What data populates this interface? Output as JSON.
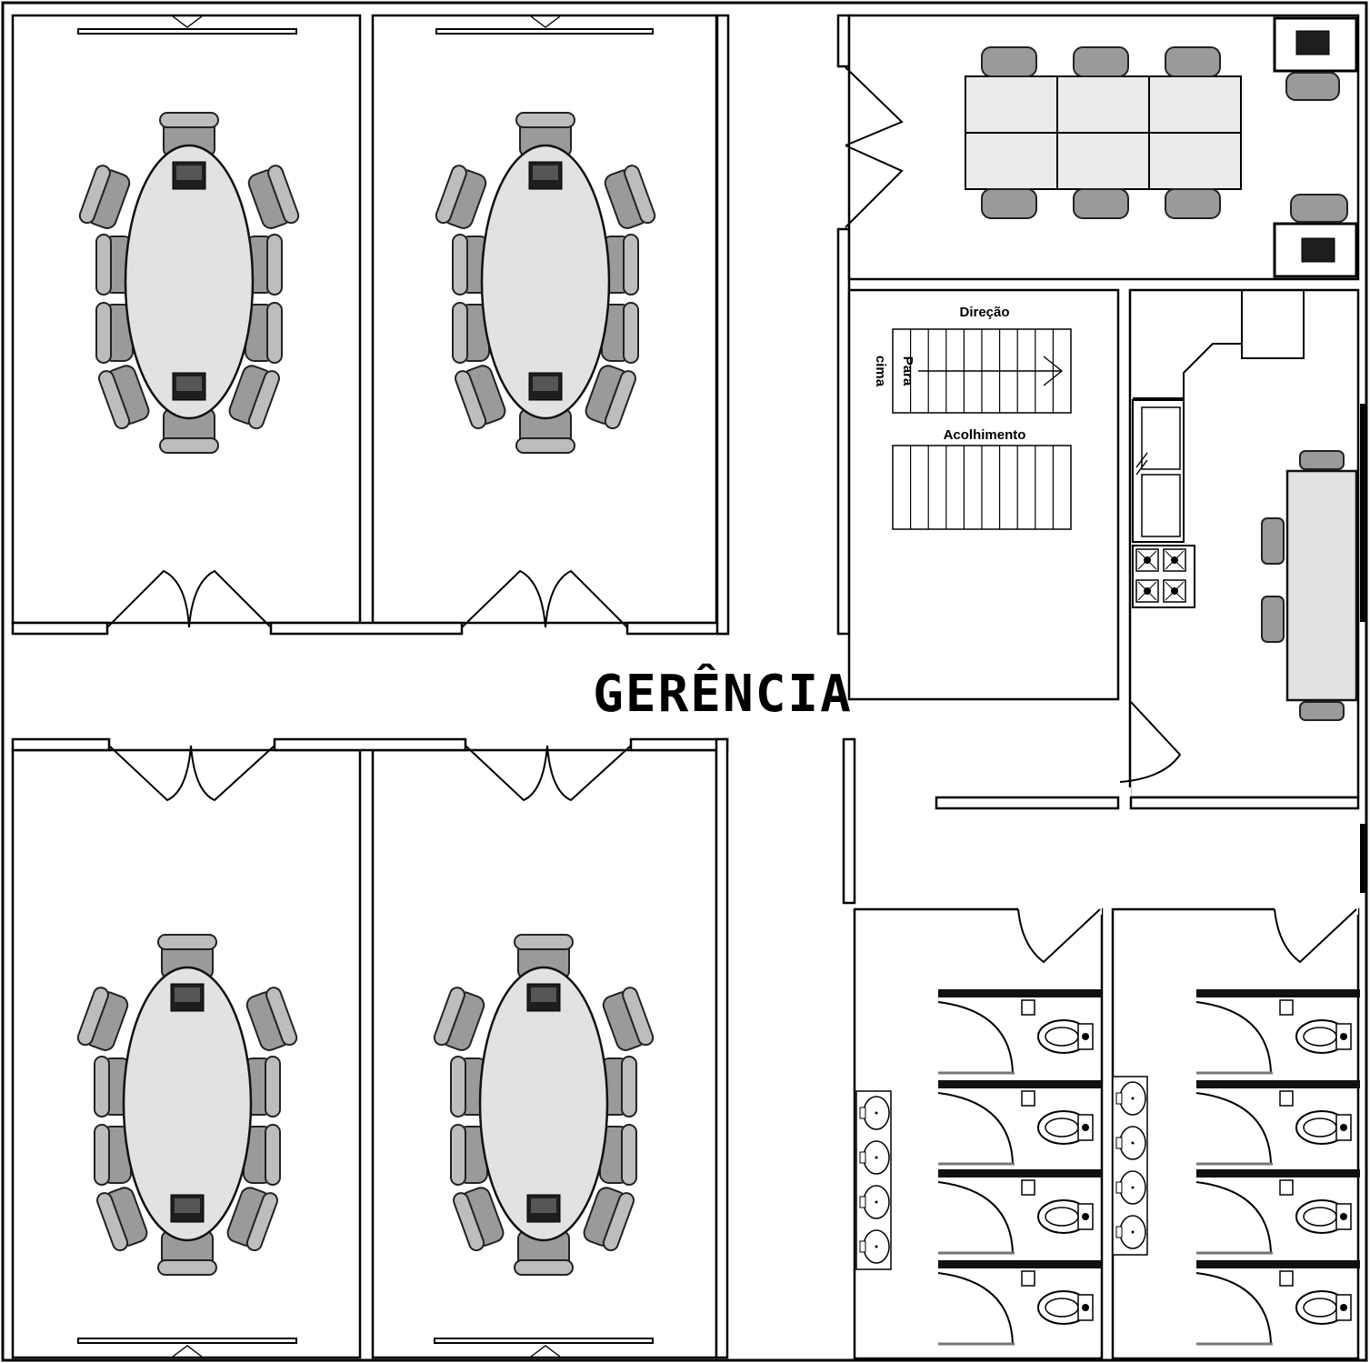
{
  "plan": {
    "title": "GERÊNCIA",
    "stairs": {
      "upper_label": "Direção",
      "lower_label": "Acolhimento",
      "direction_line1": "Para",
      "direction_line2": "cima"
    }
  },
  "rooms": [
    {
      "name": "meeting-room-1",
      "icon": "conference-table-icon"
    },
    {
      "name": "meeting-room-2",
      "icon": "conference-table-icon"
    },
    {
      "name": "meeting-room-3",
      "icon": "conference-table-icon"
    },
    {
      "name": "meeting-room-4",
      "icon": "conference-table-icon"
    },
    {
      "name": "office",
      "icon": "workstation-desk-icon"
    },
    {
      "name": "stairwell",
      "icon": "stairs-icon"
    },
    {
      "name": "kitchen",
      "icon": "stove-icon"
    },
    {
      "name": "restroom-left",
      "icon": "toilet-icon"
    },
    {
      "name": "restroom-right",
      "icon": "toilet-icon"
    }
  ],
  "colors": {
    "wall": "#000000",
    "furniture": "#e2e2e2",
    "chair": "#9a9a9a",
    "laptop": "#1e1e1e"
  }
}
